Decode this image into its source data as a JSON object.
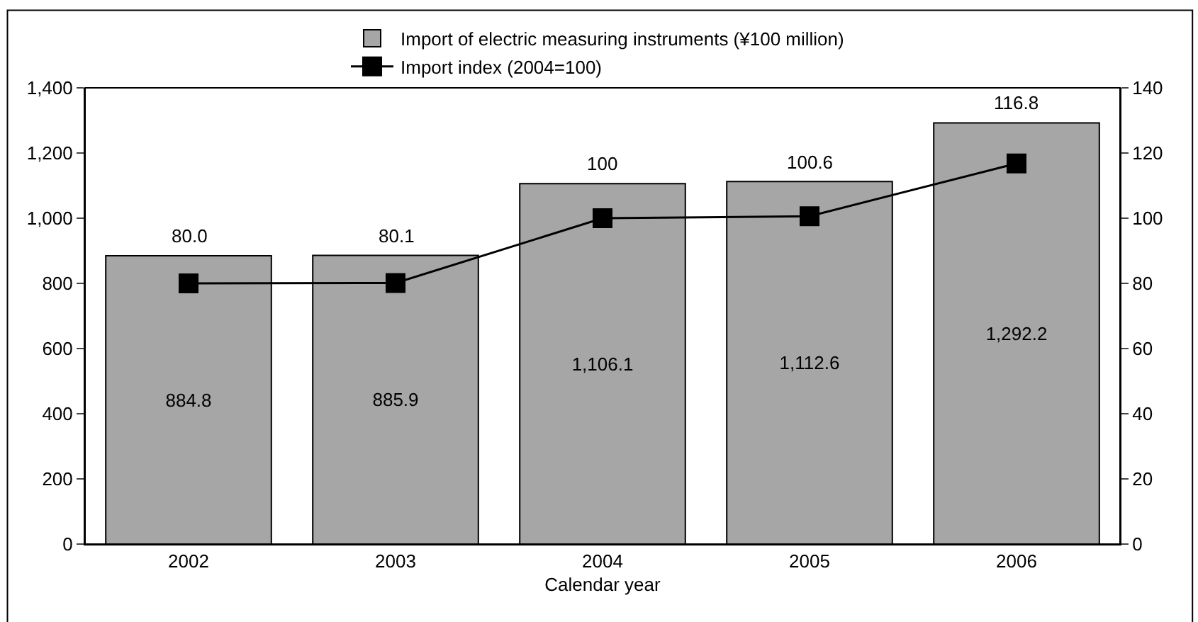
{
  "chart_data": {
    "type": "bar",
    "xlabel": "Calendar year",
    "categories": [
      "2002",
      "2003",
      "2004",
      "2005",
      "2006"
    ],
    "series": [
      {
        "name": "Import of electric measuring instruments (¥100 million)",
        "color": "#a6a6a6",
        "values": [
          884.8,
          885.9,
          1106.1,
          1112.6,
          1292.2
        ],
        "value_labels": [
          "884.8",
          "885.9",
          "1,106.1",
          "1,112.6",
          "1,292.2"
        ]
      },
      {
        "name": "Import index (2004=100)",
        "type": "line",
        "axis": "y2",
        "color": "#000000",
        "marker": "square",
        "values": [
          80.0,
          80.1,
          100,
          100.6,
          116.8
        ],
        "value_labels": [
          "80.0",
          "80.1",
          "100",
          "100.6",
          "116.8"
        ]
      }
    ],
    "ylim": [
      0,
      1400
    ],
    "yticks": [
      0,
      200,
      400,
      600,
      800,
      {
        "value": 1000,
        "label": "1,000"
      },
      {
        "value": 1200,
        "label": "1,200"
      },
      {
        "value": 1400,
        "label": "1,400"
      }
    ],
    "y2lim": [
      0,
      140
    ],
    "y2ticks": [
      0,
      20,
      40,
      60,
      80,
      100,
      120,
      140
    ],
    "legend": "top"
  }
}
